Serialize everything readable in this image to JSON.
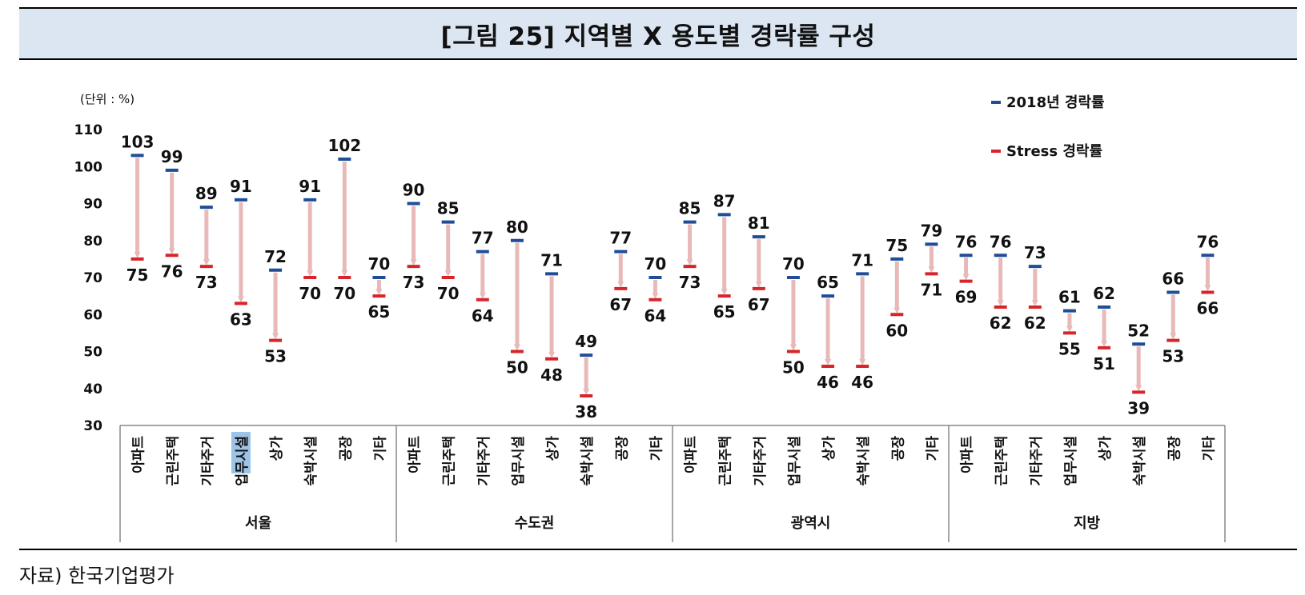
{
  "title": "[그림 25] 지역별 X 용도별 경락률 구성",
  "source": "자료) 한국기업평가",
  "colors": {
    "base": "#1f4e96",
    "stress": "#d7252a",
    "arrow": "#e9b9b9",
    "highlight": "#9dc3e6"
  },
  "chart_data": {
    "type": "range",
    "unit_label": "(단위 : %)",
    "ylim": [
      30,
      110
    ],
    "yticks": [
      30,
      40,
      50,
      60,
      70,
      80,
      90,
      100,
      110
    ],
    "legend": [
      "2018년 경락률",
      "Stress 경락률"
    ],
    "legend_position": "top-right",
    "groups": [
      {
        "region": "서울",
        "categories": [
          "아파트",
          "근린주택",
          "기타주거",
          "업무시설",
          "상가",
          "숙박시설",
          "공장",
          "기타"
        ],
        "base": [
          103,
          99,
          89,
          91,
          72,
          91,
          102,
          70
        ],
        "stress": [
          75,
          76,
          73,
          63,
          53,
          70,
          70,
          65
        ]
      },
      {
        "region": "수도권",
        "categories": [
          "아파트",
          "근린주택",
          "기타주거",
          "업무시설",
          "상가",
          "숙박시설",
          "공장",
          "기타"
        ],
        "base": [
          90,
          85,
          77,
          80,
          71,
          49,
          77,
          70
        ],
        "stress": [
          73,
          70,
          64,
          50,
          48,
          38,
          67,
          64
        ]
      },
      {
        "region": "광역시",
        "categories": [
          "아파트",
          "근린주택",
          "기타주거",
          "업무시설",
          "상가",
          "숙박시설",
          "공장",
          "기타"
        ],
        "base": [
          85,
          87,
          81,
          70,
          65,
          71,
          75,
          79
        ],
        "stress": [
          73,
          65,
          67,
          50,
          46,
          46,
          60,
          71
        ]
      },
      {
        "region": "지방",
        "categories": [
          "아파트",
          "근린주택",
          "기타주거",
          "업무시설",
          "상가",
          "숙박시설",
          "공장",
          "기타"
        ],
        "base": [
          76,
          76,
          73,
          61,
          62,
          52,
          66,
          76
        ],
        "stress": [
          69,
          62,
          62,
          55,
          51,
          39,
          53,
          66
        ]
      }
    ]
  }
}
